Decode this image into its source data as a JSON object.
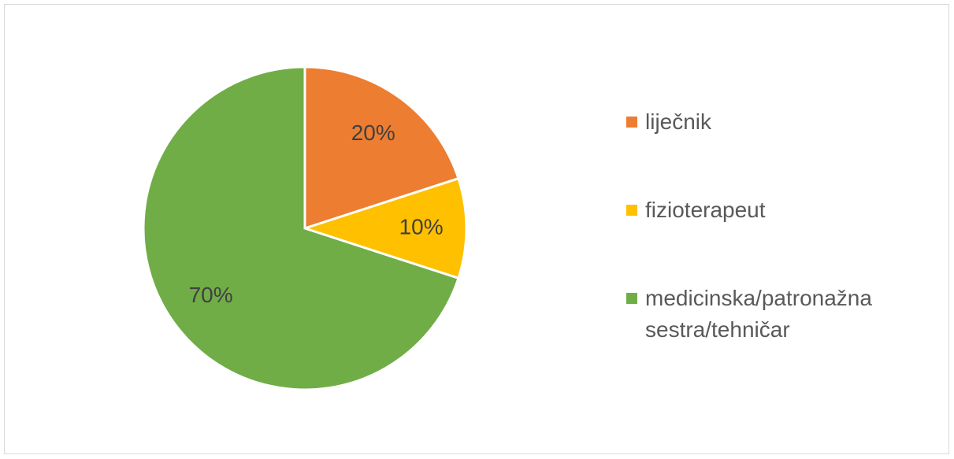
{
  "chart_data": {
    "type": "pie",
    "categories": [
      "liječnik",
      "fizioterapeut",
      "medicinska/patronažna sestra/tehničar"
    ],
    "values": [
      20,
      10,
      70
    ],
    "value_labels": [
      "20%",
      "10%",
      "70%"
    ],
    "colors": [
      "#ED7D31",
      "#FFC000",
      "#70AD47"
    ],
    "legend": "right"
  }
}
